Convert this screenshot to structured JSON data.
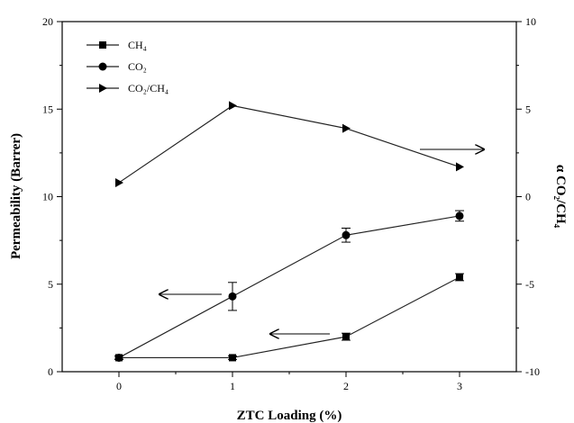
{
  "chart_data": {
    "type": "line",
    "xlabel": "ZTC Loading (%)",
    "ylabel": "Permeability (Barrer)",
    "y2label": "α CO₂/CH₄",
    "xlim": [
      -0.5,
      3.5
    ],
    "ylim": [
      0,
      20
    ],
    "y2lim": [
      -10,
      10
    ],
    "x_ticks": [
      0,
      1,
      2,
      3
    ],
    "x_tick_labels": [
      "0",
      "1",
      "2",
      "3"
    ],
    "y_ticks": [
      0,
      5,
      10,
      15,
      20
    ],
    "y_tick_labels": [
      "0",
      "5",
      "10",
      "15",
      "20"
    ],
    "y2_ticks": [
      -10,
      -5,
      0,
      5,
      10
    ],
    "y2_tick_labels": [
      "-10",
      "-5",
      "0",
      "5",
      "10"
    ],
    "grid": false,
    "legend_position": "top-left",
    "series": [
      {
        "name": "CH₄",
        "axis": "left",
        "marker": "square",
        "x": [
          0,
          1,
          2,
          3
        ],
        "y": [
          0.8,
          0.8,
          2.0,
          5.4
        ],
        "error": [
          0.1,
          0.1,
          0.2,
          0.2
        ]
      },
      {
        "name": "CO₂",
        "axis": "left",
        "marker": "circle",
        "x": [
          0,
          1,
          2,
          3
        ],
        "y": [
          0.8,
          4.3,
          7.8,
          8.9
        ],
        "error": [
          0.1,
          0.8,
          0.4,
          0.3
        ]
      },
      {
        "name": "CO₂/CH₄",
        "axis": "right",
        "marker": "triangle-right",
        "x": [
          0,
          1,
          2,
          3
        ],
        "y": [
          0.8,
          5.2,
          3.9,
          1.7
        ],
        "error": []
      }
    ],
    "annotations": [
      {
        "type": "arrow",
        "direction": "left",
        "points_to": "left axis (CO₂)"
      },
      {
        "type": "arrow",
        "direction": "left",
        "points_to": "left axis (CH₄)"
      },
      {
        "type": "arrow",
        "direction": "right",
        "points_to": "right axis (CO₂/CH₄)"
      }
    ]
  }
}
